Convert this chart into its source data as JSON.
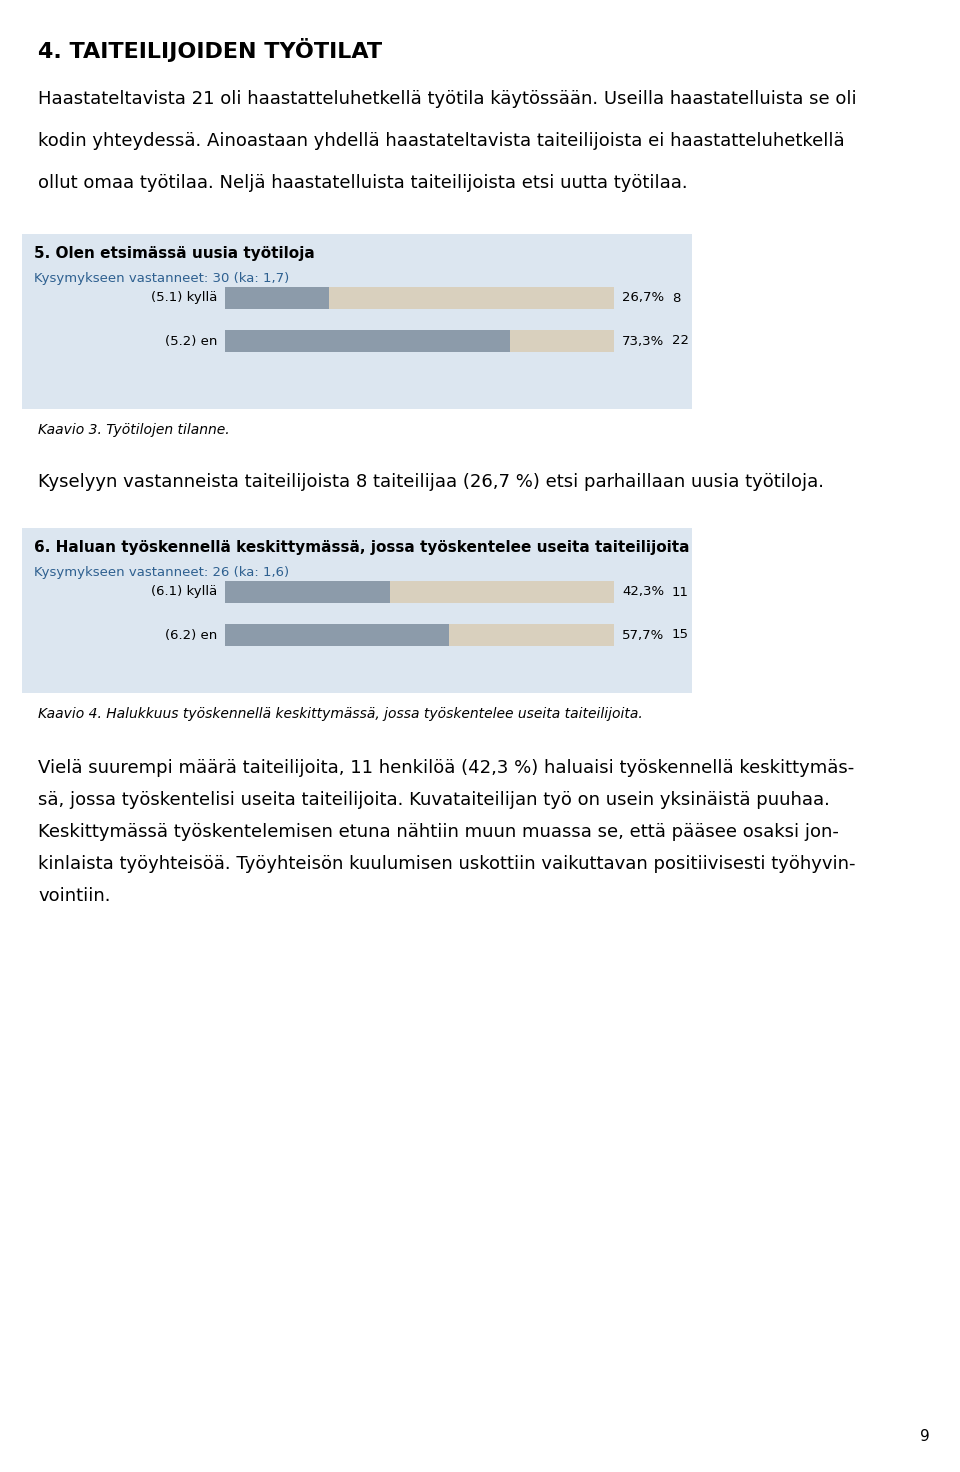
{
  "title": "4. TAITEILIJOIDEN TYÖTILAT",
  "intro_lines": [
    "Haastateltavista 21 oli haastatteluhetkellä työtila käytössään. Useilla haastatelluista se oli",
    "kodin yhteydessä. Ainoastaan yhdellä haastateltavista taiteilijoista ei haastatteluhetkellä",
    "ollut omaa työtilaa. Neljä haastatelluista taiteilijoista etsi uutta työtilaa."
  ],
  "chart1": {
    "title": "5. Olen etsimässä uusia työtiloja",
    "subtitle": "Kysymykseen vastanneet: 30 (ka: 1,7)",
    "rows": [
      {
        "label": "(5.1) kyllä",
        "pct": 26.7,
        "count": 8
      },
      {
        "label": "(5.2) en",
        "pct": 73.3,
        "count": 22
      }
    ]
  },
  "caption1": "Kaavio 3. Työtilojen tilanne.",
  "middle_text": "Kyselyyn vastanneista taiteilijoista 8 taiteilijaa (26,7 %) etsi parhaillaan uusia työtiloja.",
  "chart2": {
    "title": "6. Haluan työskennellä keskittymässä, jossa työskentelee useita taiteilijoita",
    "subtitle": "Kysymykseen vastanneet: 26 (ka: 1,6)",
    "rows": [
      {
        "label": "(6.1) kyllä",
        "pct": 42.3,
        "count": 11
      },
      {
        "label": "(6.2) en",
        "pct": 57.7,
        "count": 15
      }
    ]
  },
  "caption2": "Kaavio 4. Halukkuus työskennellä keskittymässä, jossa työskentelee useita taiteilijoita.",
  "bottom_lines": [
    "Vielä suurempi määrä taiteilijoita, 11 henkilöä (42,3 %) haluaisi työskennellä keskittymäs-",
    "sä, jossa työskentelisi useita taiteilijoita. Kuvataiteilijan työ on usein yksinäistä puuhaa.",
    "Keskittymässä työskentelemisen etuna nähtiin muun muassa se, että pääsee osaksi jon-",
    "kinlaista työyhteisöä. Työyhteisön kuulumisen uskottiin vaikuttavan positiivisesti työhyvin-",
    "vointiin."
  ],
  "page_number": "9",
  "bg_color": "#dce6f0",
  "bar_dark_color": "#8c9baa",
  "bar_light_color": "#d9d0be",
  "subtitle_color": "#2e6090"
}
